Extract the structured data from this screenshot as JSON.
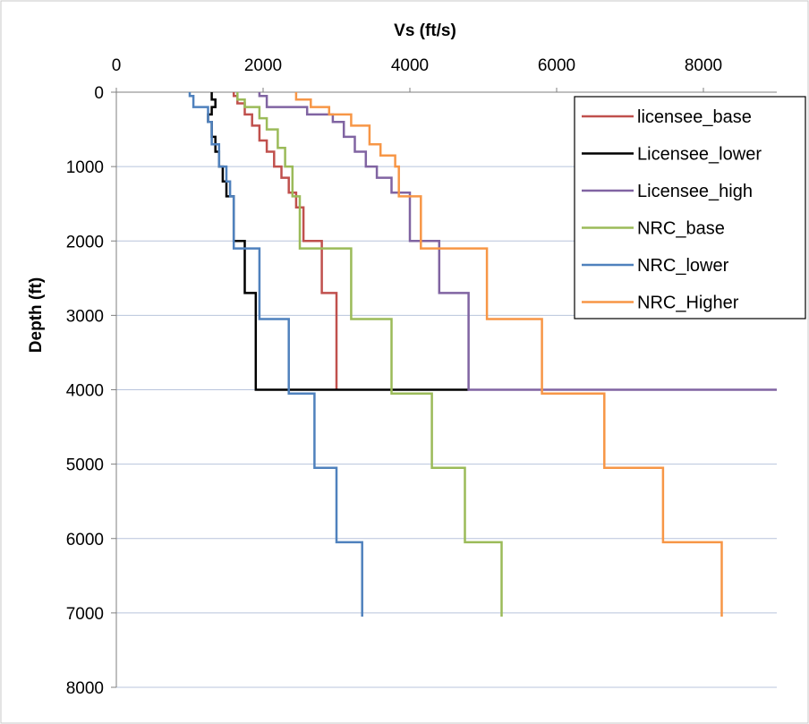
{
  "chart_data": {
    "type": "line",
    "title": "",
    "xlabel": "Vs (ft/s)",
    "ylabel": "Depth (ft)",
    "xlim": [
      0,
      9000
    ],
    "ylim": [
      0,
      8000
    ],
    "y_inverted": true,
    "x_axis_position": "top",
    "x_ticks": [
      "0",
      "2000",
      "4000",
      "6000",
      "8000"
    ],
    "y_ticks": [
      "0",
      "1000",
      "2000",
      "3000",
      "4000",
      "5000",
      "6000",
      "7000",
      "8000"
    ],
    "grid": true,
    "legend_position": "top-right",
    "series": [
      {
        "name": "licensee_base",
        "color": "#c0504d",
        "points": [
          [
            1600,
            0
          ],
          [
            1600,
            50
          ],
          [
            1650,
            50
          ],
          [
            1650,
            150
          ],
          [
            1750,
            150
          ],
          [
            1750,
            300
          ],
          [
            1850,
            300
          ],
          [
            1850,
            450
          ],
          [
            1950,
            450
          ],
          [
            1950,
            650
          ],
          [
            2050,
            650
          ],
          [
            2050,
            800
          ],
          [
            2150,
            800
          ],
          [
            2150,
            1000
          ],
          [
            2250,
            1000
          ],
          [
            2250,
            1150
          ],
          [
            2350,
            1150
          ],
          [
            2350,
            1350
          ],
          [
            2450,
            1350
          ],
          [
            2450,
            1550
          ],
          [
            2550,
            1550
          ],
          [
            2550,
            2000
          ],
          [
            2800,
            2000
          ],
          [
            2800,
            2700
          ],
          [
            3000,
            2700
          ],
          [
            3000,
            4000
          ]
        ]
      },
      {
        "name": "Licensee_lower",
        "color": "#000000",
        "points": [
          [
            1300,
            0
          ],
          [
            1300,
            100
          ],
          [
            1350,
            100
          ],
          [
            1350,
            200
          ],
          [
            1300,
            200
          ],
          [
            1300,
            300
          ],
          [
            1250,
            300
          ],
          [
            1250,
            400
          ],
          [
            1300,
            400
          ],
          [
            1300,
            600
          ],
          [
            1350,
            600
          ],
          [
            1350,
            800
          ],
          [
            1400,
            800
          ],
          [
            1400,
            1000
          ],
          [
            1450,
            1000
          ],
          [
            1450,
            1200
          ],
          [
            1500,
            1200
          ],
          [
            1500,
            1400
          ],
          [
            1600,
            1400
          ],
          [
            1600,
            2000
          ],
          [
            1750,
            2000
          ],
          [
            1750,
            2700
          ],
          [
            1900,
            2700
          ],
          [
            1900,
            4000
          ],
          [
            4800,
            4000
          ]
        ]
      },
      {
        "name": "Licensee_high",
        "color": "#8064a2",
        "points": [
          [
            1950,
            0
          ],
          [
            1950,
            50
          ],
          [
            2050,
            50
          ],
          [
            2050,
            200
          ],
          [
            2600,
            200
          ],
          [
            2600,
            300
          ],
          [
            2950,
            300
          ],
          [
            2950,
            400
          ],
          [
            3100,
            400
          ],
          [
            3100,
            600
          ],
          [
            3250,
            600
          ],
          [
            3250,
            800
          ],
          [
            3400,
            800
          ],
          [
            3400,
            1000
          ],
          [
            3550,
            1000
          ],
          [
            3550,
            1150
          ],
          [
            3750,
            1150
          ],
          [
            3750,
            1350
          ],
          [
            4000,
            1350
          ],
          [
            4000,
            2000
          ],
          [
            4400,
            2000
          ],
          [
            4400,
            2700
          ],
          [
            4800,
            2700
          ],
          [
            4800,
            4000
          ],
          [
            9000,
            4000
          ]
        ]
      },
      {
        "name": "NRC_base",
        "color": "#9bbb59",
        "points": [
          [
            1650,
            0
          ],
          [
            1650,
            100
          ],
          [
            1750,
            100
          ],
          [
            1750,
            200
          ],
          [
            1950,
            200
          ],
          [
            1950,
            350
          ],
          [
            2050,
            350
          ],
          [
            2050,
            500
          ],
          [
            2200,
            500
          ],
          [
            2200,
            750
          ],
          [
            2300,
            750
          ],
          [
            2300,
            1000
          ],
          [
            2400,
            1000
          ],
          [
            2400,
            1400
          ],
          [
            2500,
            1400
          ],
          [
            2500,
            2100
          ],
          [
            3200,
            2100
          ],
          [
            3200,
            3050
          ],
          [
            3750,
            3050
          ],
          [
            3750,
            4050
          ],
          [
            4300,
            4050
          ],
          [
            4300,
            5050
          ],
          [
            4750,
            5050
          ],
          [
            4750,
            6050
          ],
          [
            5250,
            6050
          ],
          [
            5250,
            7050
          ]
        ]
      },
      {
        "name": "NRC_lower",
        "color": "#4f81bd",
        "points": [
          [
            1000,
            0
          ],
          [
            1000,
            50
          ],
          [
            1050,
            50
          ],
          [
            1050,
            200
          ],
          [
            1250,
            200
          ],
          [
            1250,
            400
          ],
          [
            1300,
            400
          ],
          [
            1300,
            700
          ],
          [
            1400,
            700
          ],
          [
            1400,
            1000
          ],
          [
            1500,
            1000
          ],
          [
            1500,
            1200
          ],
          [
            1550,
            1200
          ],
          [
            1550,
            1400
          ],
          [
            1600,
            1400
          ],
          [
            1600,
            2100
          ],
          [
            1950,
            2100
          ],
          [
            1950,
            3050
          ],
          [
            2350,
            3050
          ],
          [
            2350,
            4050
          ],
          [
            2700,
            4050
          ],
          [
            2700,
            5050
          ],
          [
            3000,
            5050
          ],
          [
            3000,
            6050
          ],
          [
            3350,
            6050
          ],
          [
            3350,
            7050
          ]
        ]
      },
      {
        "name": "NRC_Higher",
        "color": "#f79646",
        "points": [
          [
            2450,
            0
          ],
          [
            2450,
            100
          ],
          [
            2650,
            100
          ],
          [
            2650,
            200
          ],
          [
            2900,
            200
          ],
          [
            2900,
            300
          ],
          [
            3200,
            300
          ],
          [
            3200,
            450
          ],
          [
            3450,
            450
          ],
          [
            3450,
            700
          ],
          [
            3600,
            700
          ],
          [
            3600,
            850
          ],
          [
            3800,
            850
          ],
          [
            3800,
            1000
          ],
          [
            3850,
            1000
          ],
          [
            3850,
            1400
          ],
          [
            4150,
            1400
          ],
          [
            4150,
            2100
          ],
          [
            5050,
            2100
          ],
          [
            5050,
            3050
          ],
          [
            5800,
            3050
          ],
          [
            5800,
            4050
          ],
          [
            6650,
            4050
          ],
          [
            6650,
            5050
          ],
          [
            7450,
            5050
          ],
          [
            7450,
            6050
          ],
          [
            8250,
            6050
          ],
          [
            8250,
            7050
          ]
        ]
      }
    ]
  }
}
